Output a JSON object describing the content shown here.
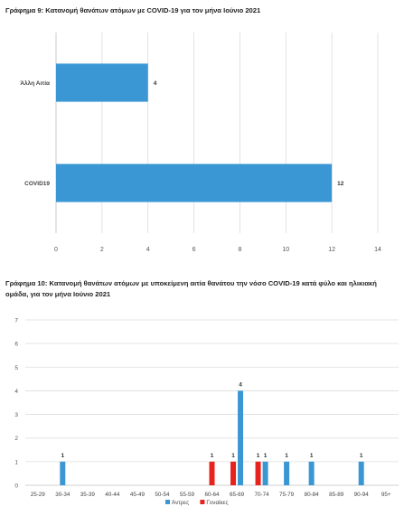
{
  "chart_data": [
    {
      "type": "bar",
      "orientation": "horizontal",
      "title": "Γράφημα 9: Κατανομή θανάτων ατόμων με COVID-19 για τον μήνα Ιούνιο 2021",
      "categories": [
        "Άλλη Αιτία",
        "COVID19"
      ],
      "values": [
        4,
        12
      ],
      "xlim": [
        0,
        14
      ],
      "xticks": [
        "0",
        "2",
        "4",
        "6",
        "8",
        "10",
        "12",
        "14"
      ],
      "grid": true,
      "color": "#3a97d4"
    },
    {
      "type": "bar",
      "title": "Γράφημα 10: Κατανομή θανάτων ατόμων με υποκείμενη αιτία θανάτου την νόσο COVID-19 κατά φύλο και ηλικιακή ομάδα, για τον μήνα Ιούνιο 2021",
      "categories": [
        "25-29",
        "30-34",
        "35-39",
        "40-44",
        "45-49",
        "50-54",
        "55-59",
        "60-64",
        "65-69",
        "70-74",
        "75-79",
        "80-84",
        "85-89",
        "90-94",
        "95+"
      ],
      "series": [
        {
          "name": "Άντρες",
          "color": "#3a97d4",
          "values": [
            0,
            1,
            0,
            0,
            0,
            0,
            0,
            0,
            4,
            1,
            1,
            1,
            0,
            1,
            0
          ]
        },
        {
          "name": "Γυναίκες",
          "color": "#e8221c",
          "values": [
            0,
            0,
            0,
            0,
            0,
            0,
            0,
            1,
            1,
            1,
            0,
            0,
            0,
            0,
            0
          ]
        }
      ],
      "ylim": [
        0,
        7
      ],
      "yticks": [
        "0",
        "1",
        "2",
        "3",
        "4",
        "5",
        "6",
        "7"
      ],
      "grid": true,
      "legend": "bottom"
    }
  ]
}
